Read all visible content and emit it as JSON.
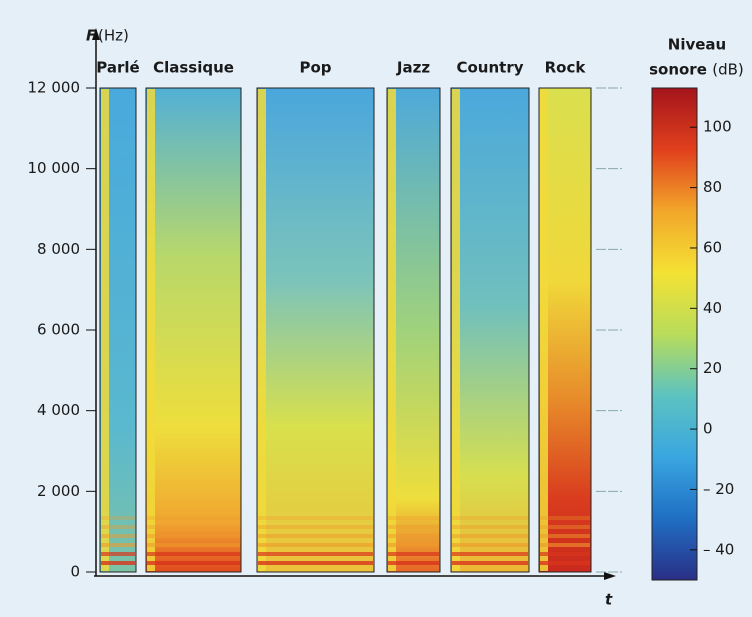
{
  "chart_data": {
    "type": "spectrogram",
    "y_label": "F",
    "y_unit": "(Hz)",
    "x_label": "t",
    "categories": [
      "Parlé",
      "Classique",
      "Pop",
      "Jazz",
      "Country",
      "Rock"
    ],
    "ylim": [
      0,
      12000
    ],
    "yticks": [
      0,
      {
        "value": 2000,
        "label": "2 000"
      },
      {
        "value": 4000,
        "label": "4 000"
      },
      {
        "value": 6000,
        "label": "6 000"
      },
      {
        "value": 8000,
        "label": "8 000"
      },
      {
        "value": 10000,
        "label": "10 000"
      },
      {
        "value": 12000,
        "label": "12 000"
      }
    ],
    "colorbar": {
      "title": [
        "Niveau",
        "sonore",
        "(dB)"
      ],
      "clim": [
        -50,
        113
      ],
      "ticks": [
        {
          "value": -40,
          "label": "– 40"
        },
        {
          "value": -20,
          "label": "– 20"
        },
        0,
        20,
        40,
        60,
        80,
        100
      ],
      "colormap": [
        "#2a2f86",
        "#1f6fc4",
        "#3aa6e0",
        "#5cc3c0",
        "#b9dc5a",
        "#f4e234",
        "#f2a62a",
        "#e1401d",
        "#a3141b"
      ]
    }
  }
}
